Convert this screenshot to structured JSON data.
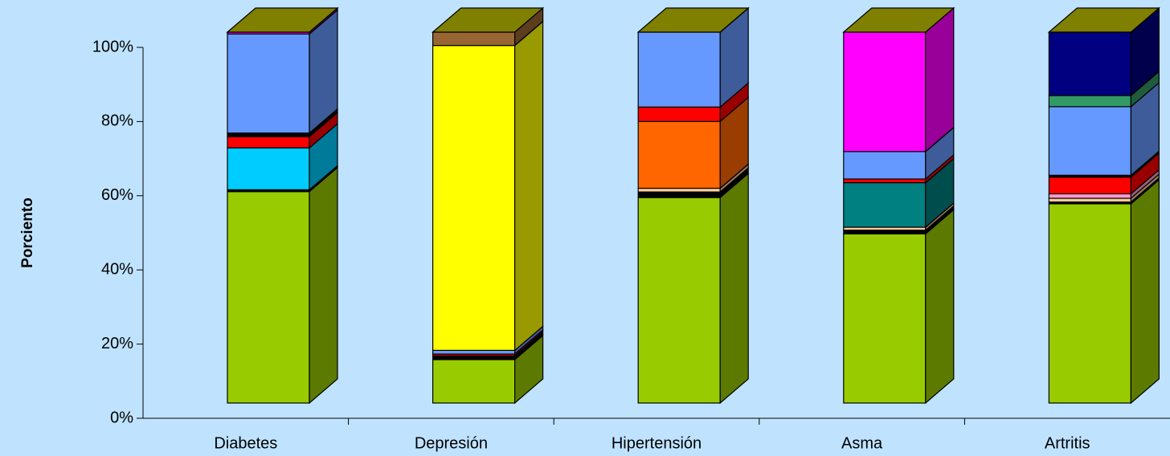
{
  "chart_data": {
    "type": "stacked_bar_3d",
    "y_label": "Porciento",
    "categories": [
      "Diabetes",
      "Depresión",
      "Hipertensión",
      "Asma",
      "Artritis"
    ],
    "series": [
      {
        "color": "#99cc00",
        "values": [
          57,
          11.7,
          55.4,
          45.6,
          53.7
        ]
      },
      {
        "color": "#000000",
        "values": [
          0.5,
          1,
          1.5,
          1,
          0.5
        ]
      },
      {
        "color": "#ffcc99",
        "values": [
          0,
          0,
          1,
          0.8,
          1
        ]
      },
      {
        "color": "#ff99cc",
        "values": [
          0,
          0,
          0,
          0,
          1.2
        ]
      },
      {
        "color": "#008080",
        "values": [
          0,
          0,
          0,
          12,
          0
        ]
      },
      {
        "color": "#00ccff",
        "values": [
          11.3,
          0,
          0,
          0,
          0
        ]
      },
      {
        "color": "#ff6600",
        "values": [
          0,
          0,
          18,
          0,
          0
        ]
      },
      {
        "color": "#ff0000",
        "values": [
          3,
          0.5,
          3.9,
          1,
          4.5
        ]
      },
      {
        "color": "#000000",
        "values": [
          1,
          0,
          0,
          0,
          0.5
        ]
      },
      {
        "color": "#6699ff",
        "values": [
          26.7,
          1,
          20.2,
          7.4,
          18.5
        ]
      },
      {
        "color": "#ffff00",
        "values": [
          0,
          82.2,
          0,
          0,
          0
        ]
      },
      {
        "color": "#339966",
        "values": [
          0,
          0,
          0,
          0,
          3
        ]
      },
      {
        "color": "#000080",
        "values": [
          0,
          0,
          0,
          0,
          17.1
        ]
      },
      {
        "color": "#ff00ff",
        "values": [
          0.5,
          0,
          0,
          32.2,
          0
        ]
      },
      {
        "color": "#996633",
        "values": [
          0,
          3.6,
          0,
          0,
          0
        ]
      }
    ],
    "top_color": "#808000",
    "ylim": [
      0,
      100
    ],
    "yticks": [
      {
        "value": 0,
        "label": "0%"
      },
      {
        "value": 20,
        "label": "20%"
      },
      {
        "value": 40,
        "label": "40%"
      },
      {
        "value": 60,
        "label": "60%"
      },
      {
        "value": 80,
        "label": "80%"
      },
      {
        "value": 100,
        "label": "100%"
      }
    ]
  }
}
